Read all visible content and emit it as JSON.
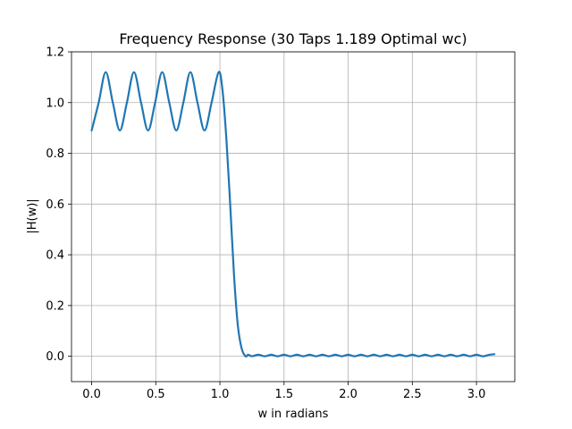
{
  "chart_data": {
    "type": "line",
    "title": "Frequency Response (30 Taps 1.189 Optimal wc)",
    "xlabel": "w in radians",
    "ylabel": "|H(w)|",
    "xlim": [
      -0.157,
      3.299
    ],
    "ylim": [
      -0.1,
      1.2
    ],
    "xticks": [
      0.0,
      0.5,
      1.0,
      1.5,
      2.0,
      2.5,
      3.0
    ],
    "xtick_labels": [
      "0.0",
      "0.5",
      "1.0",
      "1.5",
      "2.0",
      "2.5",
      "3.0"
    ],
    "yticks": [
      0.0,
      0.2,
      0.4,
      0.6,
      0.8,
      1.0,
      1.2
    ],
    "ytick_labels": [
      "0.0",
      "0.2",
      "0.4",
      "0.6",
      "0.8",
      "1.0",
      "1.2"
    ],
    "grid": true,
    "color": "#1f77b4",
    "series": [
      {
        "x": [
          0.0,
          0.055,
          0.11,
          0.165,
          0.22,
          0.275,
          0.33,
          0.385,
          0.44,
          0.495,
          0.55,
          0.605,
          0.66,
          0.715,
          0.77,
          0.825,
          0.88,
          0.935,
          0.99,
          1.02,
          1.05,
          1.08,
          1.11,
          1.14,
          1.17,
          1.2,
          1.22,
          1.25,
          1.3,
          1.35,
          1.4,
          1.45,
          1.5,
          1.55,
          1.6,
          1.65,
          1.7,
          1.75,
          1.8,
          1.85,
          1.9,
          1.95,
          2.0,
          2.05,
          2.1,
          2.15,
          2.2,
          2.25,
          2.3,
          2.35,
          2.4,
          2.45,
          2.5,
          2.55,
          2.6,
          2.65,
          2.7,
          2.75,
          2.8,
          2.85,
          2.9,
          2.95,
          3.0,
          3.05,
          3.1,
          3.14
        ],
        "y": [
          0.89,
          1.0,
          1.12,
          1.0,
          0.89,
          1.0,
          1.12,
          1.0,
          0.89,
          1.0,
          1.12,
          1.0,
          0.89,
          1.0,
          1.12,
          1.0,
          0.89,
          1.0,
          1.12,
          1.05,
          0.86,
          0.6,
          0.32,
          0.12,
          0.03,
          0.0,
          0.006,
          0.0,
          0.006,
          0.0,
          0.006,
          0.0,
          0.006,
          0.0,
          0.006,
          0.0,
          0.006,
          0.0,
          0.006,
          0.0,
          0.006,
          0.0,
          0.006,
          0.0,
          0.006,
          0.0,
          0.006,
          0.0,
          0.006,
          0.0,
          0.006,
          0.0,
          0.006,
          0.0,
          0.006,
          0.0,
          0.006,
          0.0,
          0.006,
          0.0,
          0.006,
          0.0,
          0.006,
          0.0,
          0.006,
          0.008
        ]
      }
    ]
  }
}
